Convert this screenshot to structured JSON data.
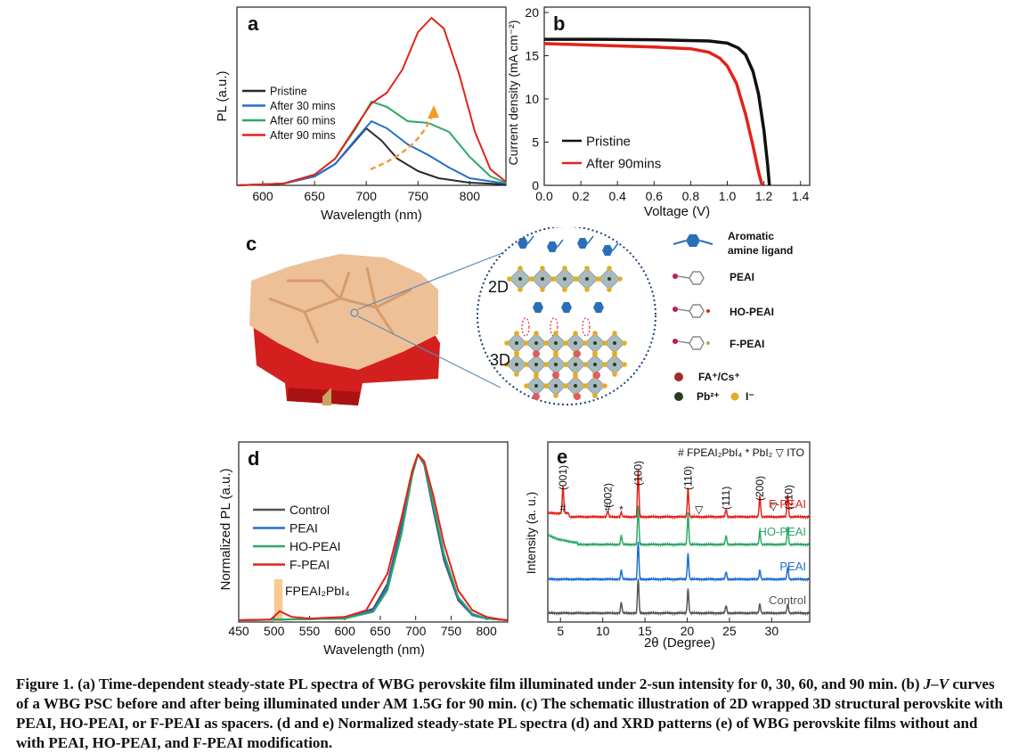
{
  "caption": {
    "lead": "Figure 1. (a) Time-dependent steady-state PL spectra of WBG perovskite film illuminated under 2-sun intensity for 0, 30, 60, and 90 min. (b) ",
    "jv_italic": "J–V",
    "tail": " curves of a WBG PSC before and after being illuminated under AM 1.5G for 90 min. (c) The schematic illustration of 2D wrapped 3D structural perovskite with PEAI, HO-PEAI, or F-PEAI as spacers. (d and e) Normalized steady-state PL spectra (d) and XRD patterns (e) of WBG perovskite films without and with PEAI, HO-PEAI, and F-PEAI modification."
  },
  "colors": {
    "black": "#2a2a2a",
    "blue": "#1f6fd0",
    "green": "#2ea868",
    "red": "#e2231a",
    "grey": "#555555",
    "orange": "#f39a2a",
    "pink": "#c2185b"
  },
  "panel_c": {
    "letter": "c",
    "label_2d": "2D",
    "label_3d": "3D",
    "legend": [
      {
        "icon": "aromatic-ligand-icon",
        "text": "Aromatic amine ligand"
      },
      {
        "icon": "peai-molecule-icon",
        "text": "PEAI"
      },
      {
        "icon": "ho-peai-molecule-icon",
        "text": "HO-PEAI"
      },
      {
        "icon": "f-peai-molecule-icon",
        "text": "F-PEAI"
      },
      {
        "icon": "fa-cs-ion-icon",
        "text": "FA⁺/Cs⁺"
      },
      {
        "icon": "pb-ion-icon",
        "text": "Pb²⁺"
      },
      {
        "icon": "iodide-ion-icon",
        "text": "I⁻"
      }
    ]
  },
  "chart_data": [
    {
      "panel": "a",
      "type": "line",
      "title": "",
      "xlabel": "Wavelength (nm)",
      "ylabel": "PL (a.u.)",
      "xlim": [
        575,
        835
      ],
      "ylim": [
        0,
        1.0
      ],
      "xticks": [
        600,
        650,
        700,
        750,
        800
      ],
      "grid": false,
      "legend_position": "left",
      "annotation": "dashed orange arrow indicating growth of the ~760 nm peak",
      "series": [
        {
          "name": "Pristine",
          "color": "#2a2a2a",
          "x": [
            575,
            620,
            650,
            670,
            685,
            700,
            715,
            730,
            750,
            770,
            800,
            835
          ],
          "y": [
            0.0,
            0.01,
            0.05,
            0.12,
            0.22,
            0.32,
            0.25,
            0.15,
            0.08,
            0.04,
            0.015,
            0.005
          ]
        },
        {
          "name": "After 30 mins",
          "color": "#1f6fd0",
          "x": [
            575,
            620,
            650,
            670,
            690,
            705,
            720,
            740,
            760,
            780,
            800,
            835
          ],
          "y": [
            0.0,
            0.01,
            0.05,
            0.12,
            0.26,
            0.36,
            0.32,
            0.23,
            0.17,
            0.1,
            0.04,
            0.01
          ]
        },
        {
          "name": "After 60 mins",
          "color": "#2ea868",
          "x": [
            575,
            620,
            650,
            670,
            690,
            705,
            720,
            740,
            760,
            780,
            800,
            820,
            835
          ],
          "y": [
            0.0,
            0.01,
            0.06,
            0.15,
            0.32,
            0.47,
            0.44,
            0.36,
            0.35,
            0.3,
            0.16,
            0.05,
            0.015
          ]
        },
        {
          "name": "After 90 mins",
          "color": "#e2231a",
          "x": [
            575,
            620,
            650,
            670,
            690,
            705,
            720,
            735,
            750,
            763,
            775,
            790,
            805,
            820,
            835
          ],
          "y": [
            0.0,
            0.01,
            0.06,
            0.15,
            0.33,
            0.46,
            0.52,
            0.65,
            0.86,
            0.94,
            0.88,
            0.62,
            0.3,
            0.09,
            0.02
          ]
        }
      ]
    },
    {
      "panel": "b",
      "type": "line",
      "title": "",
      "xlabel": "Voltage (V)",
      "ylabel": "Current density (mA cm⁻²)",
      "xlim": [
        0,
        1.45
      ],
      "ylim": [
        0,
        20
      ],
      "xticks": [
        "0.0",
        "0.2",
        "0.4",
        "0.6",
        "0.8",
        "1.0",
        "1.2",
        "1.4"
      ],
      "yticks": [
        0,
        5,
        10,
        15,
        20
      ],
      "grid": false,
      "legend_position": "bottom-left",
      "series": [
        {
          "name": "Pristine",
          "color": "#111111",
          "x": [
            0,
            0.3,
            0.6,
            0.9,
            1.0,
            1.06,
            1.1,
            1.14,
            1.17,
            1.2,
            1.22,
            1.23
          ],
          "y": [
            16.9,
            16.9,
            16.85,
            16.7,
            16.45,
            15.9,
            15.1,
            13.2,
            10.6,
            6.4,
            2.5,
            0
          ]
        },
        {
          "name": "After 90mins",
          "color": "#e2231a",
          "x": [
            0,
            0.3,
            0.6,
            0.8,
            0.9,
            0.96,
            1.0,
            1.05,
            1.1,
            1.14,
            1.17,
            1.19
          ],
          "y": [
            16.4,
            16.2,
            16.0,
            15.8,
            15.4,
            14.7,
            13.8,
            11.8,
            8.2,
            4.6,
            1.6,
            0
          ]
        }
      ]
    },
    {
      "panel": "d",
      "type": "line",
      "title": "",
      "xlabel": "Wavelength (nm)",
      "ylabel": "Normalized PL (a.u.)",
      "xlim": [
        450,
        830
      ],
      "ylim": [
        0,
        1.0
      ],
      "xticks": [
        450,
        500,
        550,
        600,
        650,
        700,
        750,
        800
      ],
      "grid": false,
      "legend_position": "left",
      "annotation": "FPEAI₂PbI₄",
      "annotation_band": [
        500,
        512
      ],
      "series": [
        {
          "name": "Control",
          "color": "#555555",
          "x": [
            450,
            600,
            640,
            660,
            680,
            695,
            703,
            712,
            725,
            740,
            760,
            780,
            800,
            830
          ],
          "y": [
            0,
            0.01,
            0.07,
            0.22,
            0.58,
            0.9,
            1.0,
            0.94,
            0.66,
            0.36,
            0.12,
            0.03,
            0.01,
            0
          ]
        },
        {
          "name": "PEAI",
          "color": "#1f6fd0",
          "x": [
            450,
            600,
            640,
            660,
            680,
            695,
            703,
            712,
            725,
            740,
            760,
            780,
            800,
            830
          ],
          "y": [
            0,
            0.01,
            0.06,
            0.2,
            0.55,
            0.88,
            1.0,
            0.95,
            0.68,
            0.38,
            0.13,
            0.03,
            0.01,
            0
          ]
        },
        {
          "name": "HO-PEAI",
          "color": "#2ea868",
          "x": [
            450,
            600,
            640,
            660,
            680,
            695,
            703,
            712,
            725,
            740,
            760,
            780,
            800,
            830
          ],
          "y": [
            0,
            0.01,
            0.05,
            0.18,
            0.52,
            0.87,
            1.0,
            0.95,
            0.7,
            0.4,
            0.14,
            0.04,
            0.01,
            0
          ]
        },
        {
          "name": "F-PEAI",
          "color": "#e2231a",
          "x": [
            450,
            495,
            502,
            508,
            515,
            525,
            550,
            600,
            630,
            660,
            680,
            695,
            703,
            712,
            725,
            740,
            760,
            780,
            800,
            820,
            830
          ],
          "y": [
            0,
            0.005,
            0.03,
            0.055,
            0.04,
            0.02,
            0.01,
            0.02,
            0.06,
            0.28,
            0.62,
            0.9,
            1.0,
            0.96,
            0.75,
            0.46,
            0.18,
            0.06,
            0.02,
            0.005,
            0
          ]
        }
      ]
    },
    {
      "panel": "e",
      "type": "line",
      "title": "",
      "xlabel": "2θ (Degree)",
      "ylabel": "Intensity (a. u.)",
      "xlim": [
        3.5,
        34.5
      ],
      "xticks": [
        5,
        10,
        15,
        20,
        25,
        30
      ],
      "grid": false,
      "legend_text": "# FPEAI₂PbI₄  * PbI₂  ▽ ITO",
      "peak_labels": [
        {
          "text": "(001)",
          "x": 5.3
        },
        {
          "text": "(002)",
          "x": 10.6
        },
        {
          "text": "(100)",
          "x": 14.2
        },
        {
          "text": "(110)",
          "x": 20.1
        },
        {
          "text": "(111)",
          "x": 24.6
        },
        {
          "text": "(200)",
          "x": 28.6
        },
        {
          "text": "(210)",
          "x": 32.0
        }
      ],
      "markers": [
        {
          "symbol": "#",
          "x": 5.3
        },
        {
          "symbol": "#",
          "x": 10.6
        },
        {
          "symbol": "*",
          "x": 12.2
        },
        {
          "symbol": "▽",
          "x": 21.4
        },
        {
          "symbol": "▽",
          "x": 30.2
        }
      ],
      "series": [
        {
          "name": "F-PEAI",
          "color": "#e2231a",
          "offset": 3,
          "peaks": [
            [
              5.3,
              0.9
            ],
            [
              10.6,
              0.2
            ],
            [
              12.2,
              0.15
            ],
            [
              14.2,
              1.55
            ],
            [
              20.1,
              0.95
            ],
            [
              24.6,
              0.25
            ],
            [
              28.6,
              0.7
            ],
            [
              31.9,
              0.75
            ]
          ]
        },
        {
          "name": "HO-PEAI",
          "color": "#2ea868",
          "offset": 2,
          "peaks": [
            [
              12.2,
              0.3
            ],
            [
              14.2,
              1.3
            ],
            [
              20.1,
              1.05
            ],
            [
              24.6,
              0.3
            ],
            [
              28.6,
              0.45
            ],
            [
              31.9,
              0.6
            ]
          ]
        },
        {
          "name": "PEAI",
          "color": "#1f6fd0",
          "offset": 1,
          "peaks": [
            [
              12.2,
              0.3
            ],
            [
              14.2,
              1.25
            ],
            [
              20.1,
              0.85
            ],
            [
              24.6,
              0.25
            ],
            [
              28.6,
              0.3
            ],
            [
              31.9,
              0.4
            ]
          ]
        },
        {
          "name": "Control",
          "color": "#555555",
          "offset": 0,
          "peaks": [
            [
              12.2,
              0.35
            ],
            [
              14.2,
              1.15
            ],
            [
              20.1,
              0.8
            ],
            [
              24.6,
              0.25
            ],
            [
              28.6,
              0.3
            ],
            [
              31.9,
              0.3
            ]
          ]
        }
      ]
    }
  ]
}
